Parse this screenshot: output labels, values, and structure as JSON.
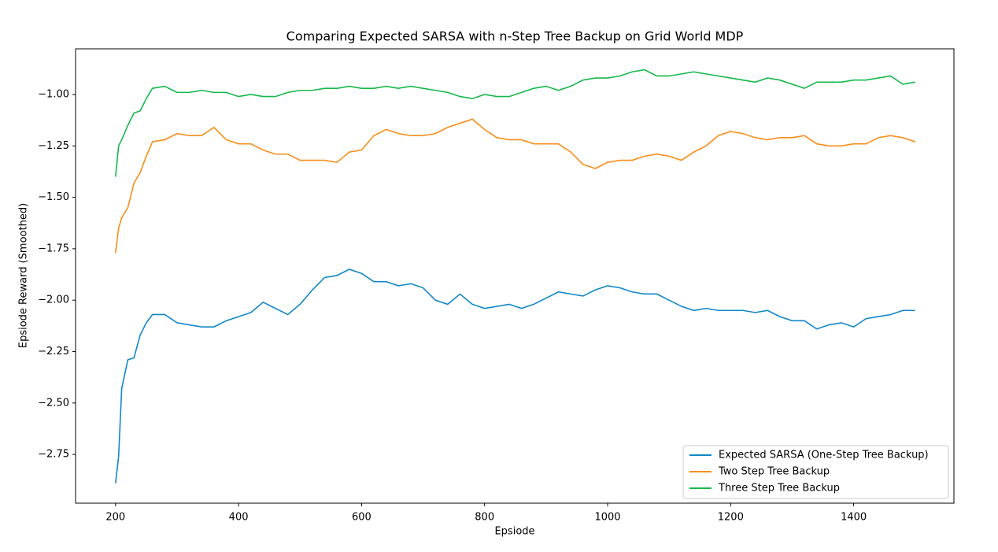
{
  "chart_data": {
    "type": "line",
    "title": "Comparing Expected SARSA with n-Step Tree Backup on Grid World MDP",
    "x_label": "Epsiode",
    "y_label": "Epsiode Reward (Smoothed)",
    "x": [
      200,
      205,
      210,
      220,
      230,
      240,
      250,
      260,
      280,
      300,
      320,
      340,
      360,
      380,
      400,
      420,
      440,
      460,
      480,
      500,
      520,
      540,
      560,
      580,
      600,
      620,
      640,
      660,
      680,
      700,
      720,
      740,
      760,
      780,
      800,
      820,
      840,
      860,
      880,
      900,
      920,
      940,
      960,
      980,
      1000,
      1020,
      1040,
      1060,
      1080,
      1100,
      1120,
      1140,
      1160,
      1180,
      1200,
      1220,
      1240,
      1260,
      1280,
      1300,
      1320,
      1340,
      1360,
      1380,
      1400,
      1420,
      1440,
      1460,
      1480,
      1500
    ],
    "series": [
      {
        "name": "Expected SARSA (One-Step Tree Backup)",
        "color": "#1187c9",
        "values": [
          -2.89,
          -2.76,
          -2.43,
          -2.29,
          -2.28,
          -2.17,
          -2.11,
          -2.07,
          -2.07,
          -2.11,
          -2.12,
          -2.13,
          -2.13,
          -2.1,
          -2.08,
          -2.06,
          -2.01,
          -2.04,
          -2.07,
          -2.02,
          -1.95,
          -1.89,
          -1.88,
          -1.85,
          -1.87,
          -1.91,
          -1.91,
          -1.93,
          -1.92,
          -1.94,
          -2.0,
          -2.02,
          -1.97,
          -2.02,
          -2.04,
          -2.03,
          -2.02,
          -2.04,
          -2.02,
          -1.99,
          -1.96,
          -1.97,
          -1.98,
          -1.95,
          -1.93,
          -1.94,
          -1.96,
          -1.97,
          -1.97,
          -2.0,
          -2.03,
          -2.05,
          -2.04,
          -2.05,
          -2.05,
          -2.05,
          -2.06,
          -2.05,
          -2.08,
          -2.1,
          -2.1,
          -2.14,
          -2.12,
          -2.11,
          -2.13,
          -2.09,
          -2.08,
          -2.07,
          -2.05,
          -2.05
        ]
      },
      {
        "name": "Two Step Tree Backup",
        "color": "#f98e1b",
        "values": [
          -1.77,
          -1.65,
          -1.6,
          -1.55,
          -1.43,
          -1.38,
          -1.3,
          -1.23,
          -1.22,
          -1.19,
          -1.2,
          -1.2,
          -1.16,
          -1.22,
          -1.24,
          -1.24,
          -1.27,
          -1.29,
          -1.29,
          -1.32,
          -1.32,
          -1.32,
          -1.33,
          -1.28,
          -1.27,
          -1.2,
          -1.17,
          -1.19,
          -1.2,
          -1.2,
          -1.19,
          -1.16,
          -1.14,
          -1.12,
          -1.17,
          -1.21,
          -1.22,
          -1.22,
          -1.24,
          -1.24,
          -1.24,
          -1.28,
          -1.34,
          -1.36,
          -1.33,
          -1.32,
          -1.32,
          -1.3,
          -1.29,
          -1.3,
          -1.32,
          -1.28,
          -1.25,
          -1.2,
          -1.18,
          -1.19,
          -1.21,
          -1.22,
          -1.21,
          -1.21,
          -1.2,
          -1.24,
          -1.25,
          -1.25,
          -1.24,
          -1.24,
          -1.21,
          -1.2,
          -1.21,
          -1.23
        ]
      },
      {
        "name": "Three Step Tree Backup",
        "color": "#15b84a",
        "values": [
          -1.4,
          -1.25,
          -1.22,
          -1.15,
          -1.09,
          -1.08,
          -1.02,
          -0.97,
          -0.96,
          -0.99,
          -0.99,
          -0.98,
          -0.99,
          -0.99,
          -1.01,
          -1.0,
          -1.01,
          -1.01,
          -0.99,
          -0.98,
          -0.98,
          -0.97,
          -0.97,
          -0.96,
          -0.97,
          -0.97,
          -0.96,
          -0.97,
          -0.96,
          -0.97,
          -0.98,
          -0.99,
          -1.01,
          -1.02,
          -1.0,
          -1.01,
          -1.01,
          -0.99,
          -0.97,
          -0.96,
          -0.98,
          -0.96,
          -0.93,
          -0.92,
          -0.92,
          -0.91,
          -0.89,
          -0.88,
          -0.91,
          -0.91,
          -0.9,
          -0.89,
          -0.9,
          -0.91,
          -0.92,
          -0.93,
          -0.94,
          -0.92,
          -0.93,
          -0.95,
          -0.97,
          -0.94,
          -0.94,
          -0.94,
          -0.93,
          -0.93,
          -0.92,
          -0.91,
          -0.95,
          -0.94
        ]
      }
    ],
    "xlim": [
      135,
      1563
    ],
    "ylim": [
      -2.987,
      -0.778
    ],
    "xticks": [
      200,
      400,
      600,
      800,
      1000,
      1200,
      1400
    ],
    "yticks": [
      {
        "value": -2.75,
        "label": "−2.75"
      },
      {
        "value": -2.5,
        "label": "−2.50"
      },
      {
        "value": -2.25,
        "label": "−2.25"
      },
      {
        "value": -2.0,
        "label": "−2.00"
      },
      {
        "value": -1.75,
        "label": "−1.75"
      },
      {
        "value": -1.5,
        "label": "−1.50"
      },
      {
        "value": -1.25,
        "label": "−1.25"
      },
      {
        "value": -1.0,
        "label": "−1.00"
      }
    ],
    "legend": "lower right"
  }
}
